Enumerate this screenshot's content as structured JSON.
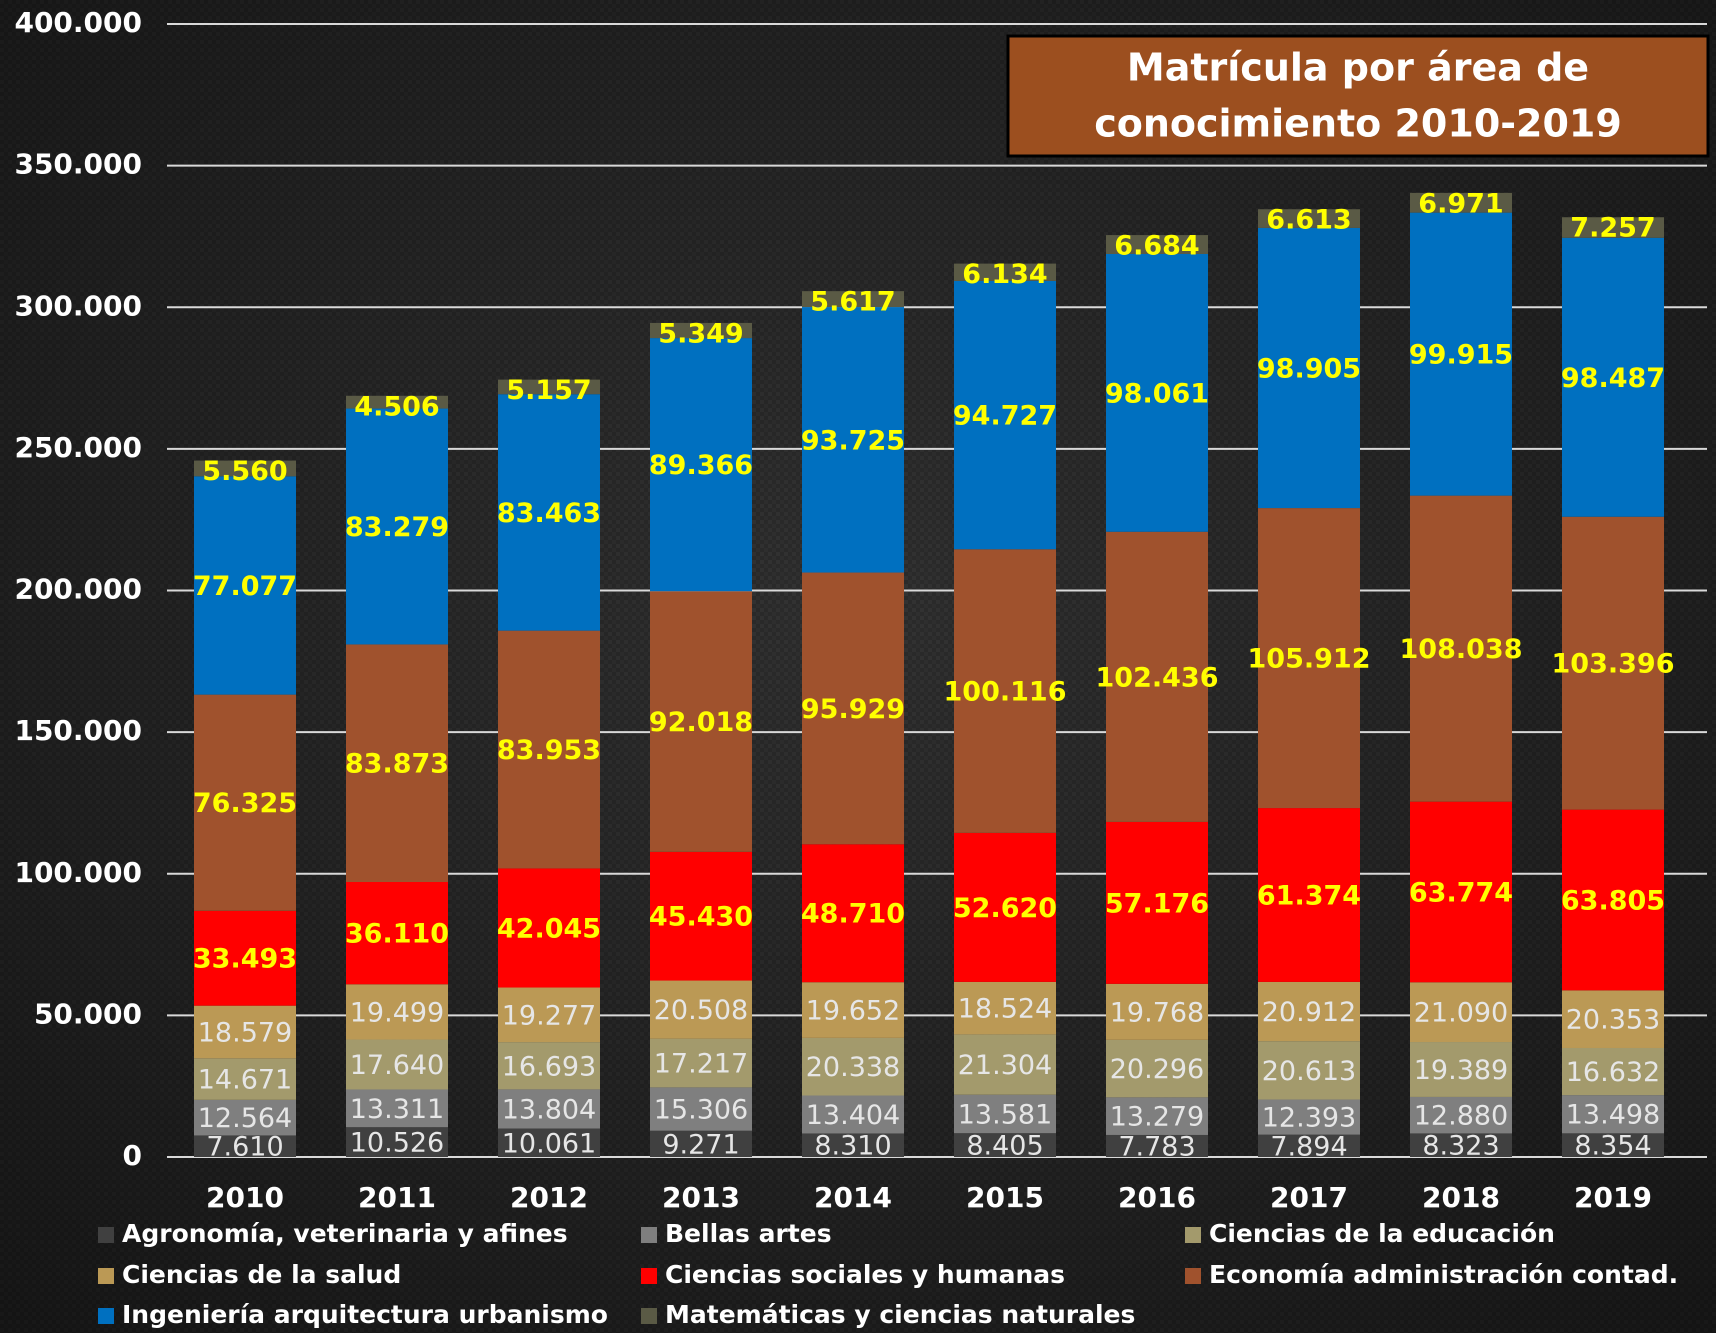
{
  "chart_data": {
    "type": "stacked_bar",
    "title": [
      "Matrícula por área de",
      "conocimiento 2010-2019"
    ],
    "categories": [
      "2010",
      "2011",
      "2012",
      "2013",
      "2014",
      "2015",
      "2016",
      "2017",
      "2018",
      "2019"
    ],
    "ylim": [
      0,
      400000
    ],
    "yticks": [
      {
        "value": 0,
        "label": "0"
      },
      {
        "value": 50000,
        "label": "50.000"
      },
      {
        "value": 100000,
        "label": "100.000"
      },
      {
        "value": 150000,
        "label": "150.000"
      },
      {
        "value": 200000,
        "label": "200.000"
      },
      {
        "value": 250000,
        "label": "250.000"
      },
      {
        "value": 300000,
        "label": "300.000"
      },
      {
        "value": 350000,
        "label": "350.000"
      },
      {
        "value": 400000,
        "label": "400.000"
      }
    ],
    "grid": true,
    "legend": "bottom",
    "series": [
      {
        "name": "Agronomía, veterinaria y afines",
        "color": "#404040",
        "values": [
          7610,
          10526,
          10061,
          9271,
          8310,
          8405,
          7783,
          7894,
          8323,
          8354
        ],
        "value_labels": [
          "7.610",
          "10.526",
          "10.061",
          "9.271",
          "8.310",
          "8.405",
          "7.783",
          "7.894",
          "8.323",
          "8.354"
        ]
      },
      {
        "name": "Bellas artes",
        "color": "#7f7f7f",
        "values": [
          12564,
          13311,
          13804,
          15306,
          13404,
          13581,
          13279,
          12393,
          12880,
          13498
        ],
        "value_labels": [
          "12.564",
          "13.311",
          "13.804",
          "15.306",
          "13.404",
          "13.581",
          "13.279",
          "12.393",
          "12.880",
          "13.498"
        ]
      },
      {
        "name": "Ciencias de la educación",
        "color": "#a39a6c",
        "values": [
          14671,
          17640,
          16693,
          17217,
          20338,
          21304,
          20296,
          20613,
          19389,
          16632
        ],
        "value_labels": [
          "14.671",
          "17.640",
          "16.693",
          "17.217",
          "20.338",
          "21.304",
          "20.296",
          "20.613",
          "19.389",
          "16.632"
        ]
      },
      {
        "name": "Ciencias de la salud",
        "color": "#bb9955",
        "values": [
          18579,
          19499,
          19277,
          20508,
          19652,
          18524,
          19768,
          20912,
          21090,
          20353
        ],
        "value_labels": [
          "18.579",
          "19.499",
          "19.277",
          "20.508",
          "19.652",
          "18.524",
          "19.768",
          "20.912",
          "21.090",
          "20.353"
        ]
      },
      {
        "name": "Ciencias sociales y humanas",
        "color": "#ff0000",
        "values": [
          33493,
          36110,
          42045,
          45430,
          48710,
          52620,
          57176,
          61374,
          63774,
          63805
        ],
        "value_labels": [
          "33.493",
          "36.110",
          "42.045",
          "45.430",
          "48.710",
          "52.620",
          "57.176",
          "61.374",
          "63.774",
          "63.805"
        ]
      },
      {
        "name": "Economía administración contad.",
        "color": "#a0522d",
        "values": [
          76325,
          83873,
          83953,
          92018,
          95929,
          100116,
          102436,
          105912,
          108038,
          103396
        ],
        "value_labels": [
          "76.325",
          "83.873",
          "83.953",
          "92.018",
          "95.929",
          "100.116",
          "102.436",
          "105.912",
          "108.038",
          "103.396"
        ]
      },
      {
        "name": "Ingeniería arquitectura urbanismo",
        "color": "#0070c0",
        "values": [
          77077,
          83279,
          83463,
          89366,
          93725,
          94727,
          98061,
          98905,
          99915,
          98487
        ],
        "value_labels": [
          "77.077",
          "83.279",
          "83.463",
          "89.366",
          "93.725",
          "94.727",
          "98.061",
          "98.905",
          "99.915",
          "98.487"
        ]
      },
      {
        "name": "Matemáticas y ciencias naturales",
        "color": "#5a5a45",
        "values": [
          5560,
          4506,
          5157,
          5349,
          5617,
          6134,
          6684,
          6613,
          6971,
          7257
        ],
        "value_labels": [
          "5.560",
          "4.506",
          "5.157",
          "5.349",
          "5.617",
          "6.134",
          "6.684",
          "6.613",
          "6.971",
          "7.257"
        ]
      }
    ]
  }
}
